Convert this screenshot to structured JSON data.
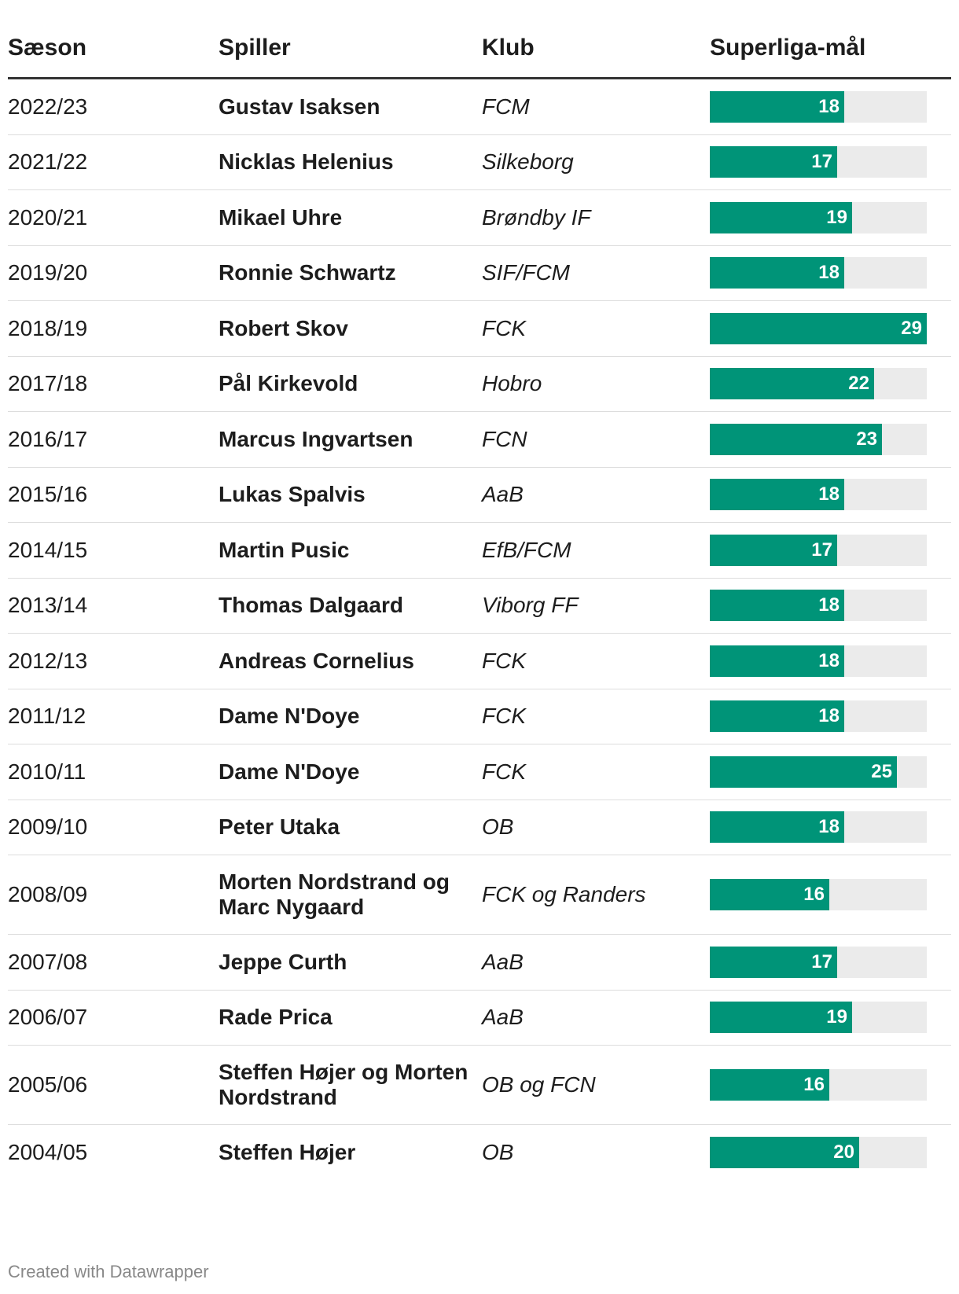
{
  "header": {
    "season": "Sæson",
    "player": "Spiller",
    "club": "Klub",
    "goals": "Superliga-mål"
  },
  "colors": {
    "bar": "#009478",
    "track": "#ebebeb",
    "bar_label": "#ffffff"
  },
  "chart_data": {
    "type": "table",
    "columns": [
      "Sæson",
      "Spiller",
      "Klub",
      "Superliga-mål"
    ],
    "bar_column": "Superliga-mål",
    "bar_max": 29,
    "rows": [
      {
        "season": "2022/23",
        "player": "Gustav Isaksen",
        "club": "FCM",
        "goals": 18
      },
      {
        "season": "2021/22",
        "player": "Nicklas Helenius",
        "club": "Silkeborg",
        "goals": 17
      },
      {
        "season": "2020/21",
        "player": "Mikael Uhre",
        "club": "Brøndby IF",
        "goals": 19
      },
      {
        "season": "2019/20",
        "player": "Ronnie Schwartz",
        "club": "SIF/FCM",
        "goals": 18
      },
      {
        "season": "2018/19",
        "player": "Robert Skov",
        "club": "FCK",
        "goals": 29
      },
      {
        "season": "2017/18",
        "player": "Pål Kirkevold",
        "club": "Hobro",
        "goals": 22
      },
      {
        "season": "2016/17",
        "player": "Marcus Ingvartsen",
        "club": "FCN",
        "goals": 23
      },
      {
        "season": "2015/16",
        "player": "Lukas Spalvis",
        "club": "AaB",
        "goals": 18
      },
      {
        "season": "2014/15",
        "player": "Martin Pusic",
        "club": "EfB/FCM",
        "goals": 17
      },
      {
        "season": "2013/14",
        "player": "Thomas Dalgaard",
        "club": "Viborg FF",
        "goals": 18
      },
      {
        "season": "2012/13",
        "player": "Andreas Cornelius",
        "club": "FCK",
        "goals": 18
      },
      {
        "season": "2011/12",
        "player": "Dame N'Doye",
        "club": "FCK",
        "goals": 18
      },
      {
        "season": "2010/11",
        "player": "Dame N'Doye",
        "club": "FCK",
        "goals": 25
      },
      {
        "season": "2009/10",
        "player": "Peter Utaka",
        "club": "OB",
        "goals": 18
      },
      {
        "season": "2008/09",
        "player": "Morten Nordstrand og Marc Nygaard",
        "club": "FCK og Randers",
        "goals": 16
      },
      {
        "season": "2007/08",
        "player": "Jeppe Curth",
        "club": "AaB",
        "goals": 17
      },
      {
        "season": "2006/07",
        "player": "Rade Prica",
        "club": "AaB",
        "goals": 19
      },
      {
        "season": "2005/06",
        "player": "Steffen Højer og Morten Nordstrand",
        "club": "OB og FCN",
        "goals": 16
      },
      {
        "season": "2004/05",
        "player": "Steffen Højer",
        "club": "OB",
        "goals": 20
      }
    ]
  },
  "footer": {
    "credit": "Created with Datawrapper"
  }
}
